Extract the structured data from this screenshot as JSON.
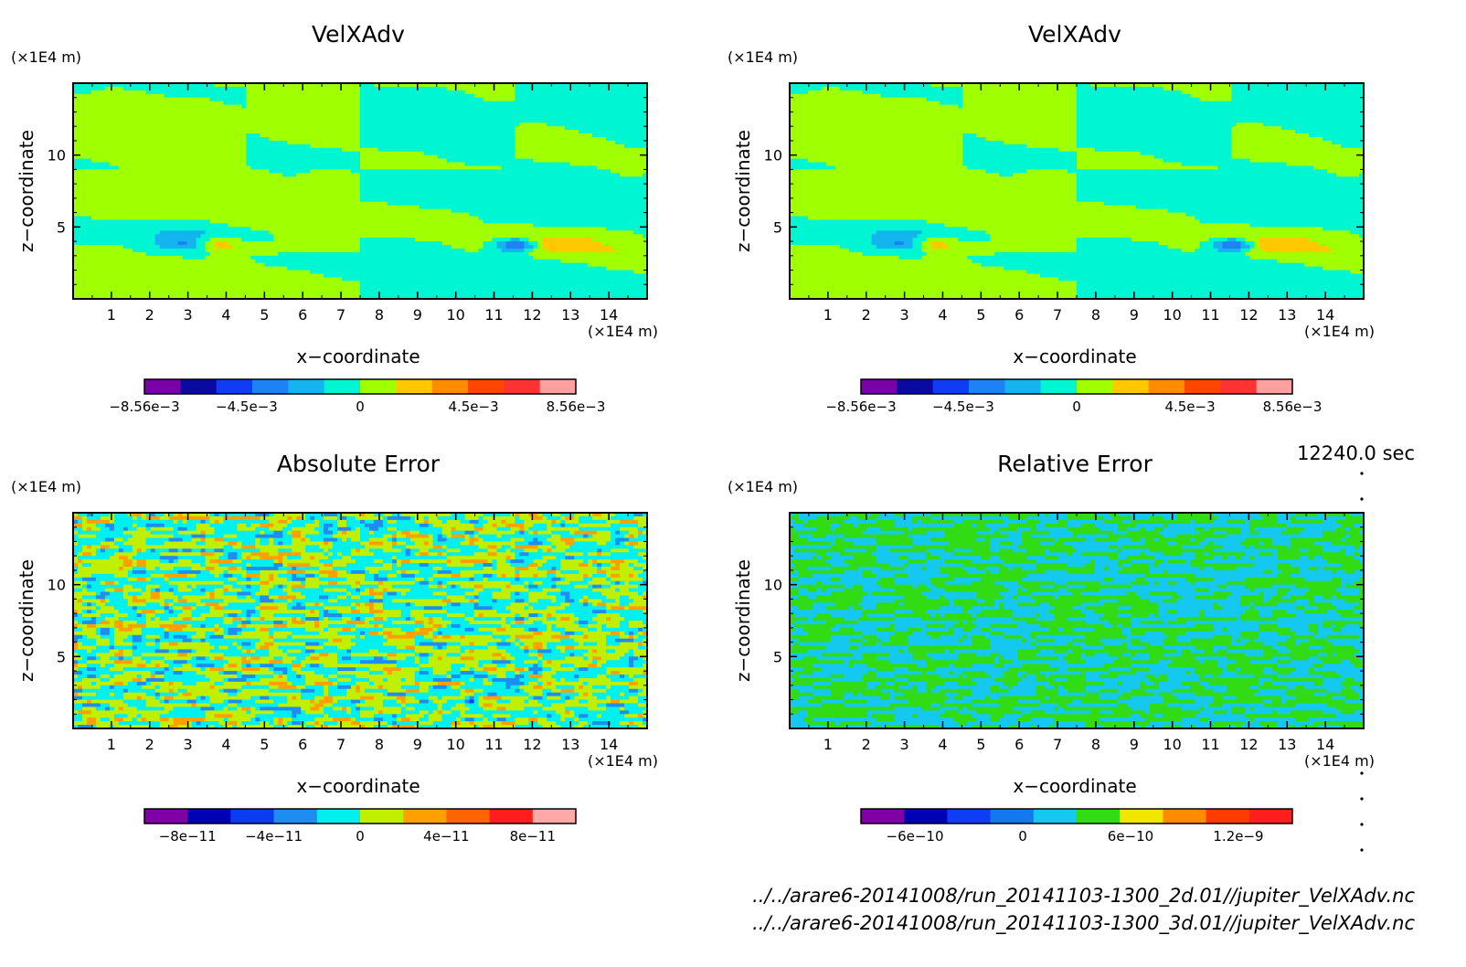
{
  "time_label": "12240.0 sec",
  "files": [
    "../../arare6-20141008/run_20141103-1300_2d.01//jupiter_VelXAdv.nc",
    "../../arare6-20141008/run_20141103-1300_3d.01//jupiter_VelXAdv.nc"
  ],
  "chart_data": [
    {
      "type": "heatmap",
      "title": "VelXAdv",
      "xlabel": "x−coordinate",
      "ylabel": "z−coordinate",
      "x_unit": "(×1E4 m)",
      "y_unit": "(×1E4 m)",
      "xlim": [
        0,
        15
      ],
      "ylim": [
        0,
        15
      ],
      "x_ticks": [
        1,
        2,
        3,
        4,
        5,
        6,
        7,
        8,
        9,
        10,
        11,
        12,
        13,
        14
      ],
      "y_ticks": [
        5,
        10
      ],
      "field": "velxadv",
      "colorbar": {
        "colors": [
          "#7a00a8",
          "#0a0aa0",
          "#0f3cf5",
          "#1e82f5",
          "#14b4f0",
          "#00f5d2",
          "#a0ff00",
          "#ffc800",
          "#ff8c00",
          "#ff4600",
          "#ff3232",
          "#ffa0a0"
        ],
        "ticks": [
          {
            "label": "−8.56e−3",
            "value": -0.00856
          },
          {
            "label": "−4.5e−3",
            "value": -0.0045
          },
          {
            "label": "0",
            "value": 0
          },
          {
            "label": "4.5e−3",
            "value": 0.0045
          },
          {
            "label": "8.56e−3",
            "value": 0.00856
          }
        ],
        "range": [
          -0.00856,
          0.00856
        ]
      }
    },
    {
      "type": "heatmap",
      "title": "VelXAdv",
      "xlabel": "x−coordinate",
      "ylabel": "z−coordinate",
      "x_unit": "(×1E4 m)",
      "y_unit": "(×1E4 m)",
      "xlim": [
        0,
        15
      ],
      "ylim": [
        0,
        15
      ],
      "x_ticks": [
        1,
        2,
        3,
        4,
        5,
        6,
        7,
        8,
        9,
        10,
        11,
        12,
        13,
        14
      ],
      "y_ticks": [
        5,
        10
      ],
      "field": "velxadv",
      "colorbar": {
        "colors": [
          "#7a00a8",
          "#0a0aa0",
          "#0f3cf5",
          "#1e82f5",
          "#14b4f0",
          "#00f5d2",
          "#a0ff00",
          "#ffc800",
          "#ff8c00",
          "#ff4600",
          "#ff3232",
          "#ffa0a0"
        ],
        "ticks": [
          {
            "label": "−8.56e−3",
            "value": -0.00856
          },
          {
            "label": "−4.5e−3",
            "value": -0.0045
          },
          {
            "label": "0",
            "value": 0
          },
          {
            "label": "4.5e−3",
            "value": 0.0045
          },
          {
            "label": "8.56e−3",
            "value": 0.00856
          }
        ],
        "range": [
          -0.00856,
          0.00856
        ]
      }
    },
    {
      "type": "heatmap",
      "title": "Absolute Error",
      "xlabel": "x−coordinate",
      "ylabel": "z−coordinate",
      "x_unit": "(×1E4 m)",
      "y_unit": "(×1E4 m)",
      "xlim": [
        0,
        15
      ],
      "ylim": [
        0,
        15
      ],
      "x_ticks": [
        1,
        2,
        3,
        4,
        5,
        6,
        7,
        8,
        9,
        10,
        11,
        12,
        13,
        14
      ],
      "y_ticks": [
        5,
        10
      ],
      "field": "abserr",
      "colorbar": {
        "colors": [
          "#8000a8",
          "#0000b4",
          "#0a3cf0",
          "#1e8cf0",
          "#00f0f0",
          "#c0f000",
          "#ffa000",
          "#ff6400",
          "#ff1e1e",
          "#ffa8a8"
        ],
        "ticks": [
          {
            "label": "−8e−11",
            "value": -8e-11
          },
          {
            "label": "−4e−11",
            "value": -4e-11
          },
          {
            "label": "0",
            "value": 0
          },
          {
            "label": "4e−11",
            "value": 4e-11
          },
          {
            "label": "8e−11",
            "value": 8e-11
          }
        ],
        "range": [
          -1e-10,
          1e-10
        ]
      }
    },
    {
      "type": "heatmap",
      "title": "Relative Error",
      "xlabel": "x−coordinate",
      "ylabel": "z−coordinate",
      "x_unit": "(×1E4 m)",
      "y_unit": "(×1E4 m)",
      "xlim": [
        0,
        15
      ],
      "ylim": [
        0,
        15
      ],
      "x_ticks": [
        1,
        2,
        3,
        4,
        5,
        6,
        7,
        8,
        9,
        10,
        11,
        12,
        13,
        14
      ],
      "y_ticks": [
        5,
        10
      ],
      "field": "relerr",
      "colorbar": {
        "colors": [
          "#8000a8",
          "#0000b4",
          "#0f3cf5",
          "#1478f0",
          "#14c8f0",
          "#32dc14",
          "#f0e600",
          "#ff8c00",
          "#ff3c00",
          "#ff1e1e"
        ],
        "ticks": [
          {
            "label": "−6e−10",
            "value": -6e-10
          },
          {
            "label": "0",
            "value": 0
          },
          {
            "label": "6e−10",
            "value": 6e-10
          },
          {
            "label": "1.2e−9",
            "value": 1.2e-09
          }
        ],
        "range": [
          -9e-10,
          1.5e-09
        ]
      }
    }
  ]
}
